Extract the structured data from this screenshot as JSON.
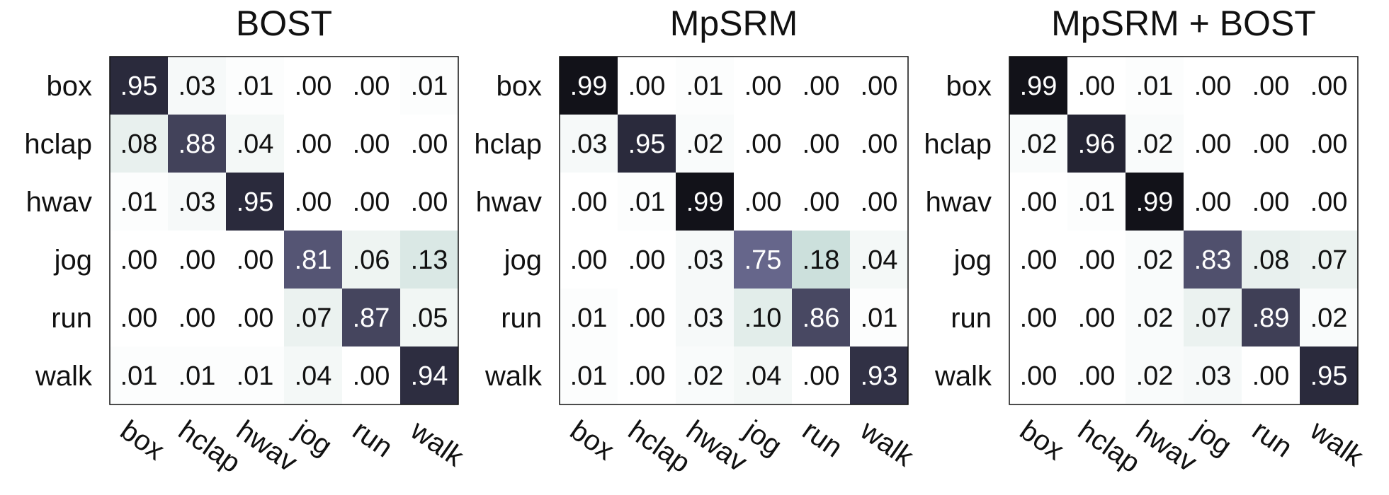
{
  "chart_data": [
    {
      "type": "heatmap",
      "title": "BOST",
      "rows": [
        "box",
        "hclap",
        "hwav",
        "jog",
        "run",
        "walk"
      ],
      "cols": [
        "box",
        "hclap",
        "hwav",
        "jog",
        "run",
        "walk"
      ],
      "labels": [
        [
          ".95",
          ".03",
          ".01",
          ".00",
          ".00",
          ".01"
        ],
        [
          ".08",
          ".88",
          ".04",
          ".00",
          ".00",
          ".00"
        ],
        [
          ".01",
          ".03",
          ".95",
          ".00",
          ".00",
          ".00"
        ],
        [
          ".00",
          ".00",
          ".00",
          ".81",
          ".06",
          ".13"
        ],
        [
          ".00",
          ".00",
          ".00",
          ".07",
          ".87",
          ".05"
        ],
        [
          ".01",
          ".01",
          ".01",
          ".04",
          ".00",
          ".94"
        ]
      ],
      "values": [
        [
          0.95,
          0.03,
          0.01,
          0.0,
          0.0,
          0.01
        ],
        [
          0.08,
          0.88,
          0.04,
          0.0,
          0.0,
          0.0
        ],
        [
          0.01,
          0.03,
          0.95,
          0.0,
          0.0,
          0.0
        ],
        [
          0.0,
          0.0,
          0.0,
          0.81,
          0.06,
          0.13
        ],
        [
          0.0,
          0.0,
          0.0,
          0.07,
          0.87,
          0.05
        ],
        [
          0.01,
          0.01,
          0.01,
          0.04,
          0.0,
          0.94
        ]
      ]
    },
    {
      "type": "heatmap",
      "title": "MpSRM",
      "rows": [
        "box",
        "hclap",
        "hwav",
        "jog",
        "run",
        "walk"
      ],
      "cols": [
        "box",
        "hclap",
        "hwav",
        "jog",
        "run",
        "walk"
      ],
      "labels": [
        [
          ".99",
          ".00",
          ".01",
          ".00",
          ".00",
          ".00"
        ],
        [
          ".03",
          ".95",
          ".02",
          ".00",
          ".00",
          ".00"
        ],
        [
          ".00",
          ".01",
          ".99",
          ".00",
          ".00",
          ".00"
        ],
        [
          ".00",
          ".00",
          ".03",
          ".75",
          ".18",
          ".04"
        ],
        [
          ".01",
          ".00",
          ".03",
          ".10",
          ".86",
          ".01"
        ],
        [
          ".01",
          ".00",
          ".02",
          ".04",
          ".00",
          ".93"
        ]
      ],
      "values": [
        [
          0.99,
          0.0,
          0.01,
          0.0,
          0.0,
          0.0
        ],
        [
          0.03,
          0.95,
          0.02,
          0.0,
          0.0,
          0.0
        ],
        [
          0.0,
          0.01,
          0.99,
          0.0,
          0.0,
          0.0
        ],
        [
          0.0,
          0.0,
          0.03,
          0.75,
          0.18,
          0.04
        ],
        [
          0.01,
          0.0,
          0.03,
          0.1,
          0.86,
          0.01
        ],
        [
          0.01,
          0.0,
          0.02,
          0.04,
          0.0,
          0.93
        ]
      ]
    },
    {
      "type": "heatmap",
      "title": "MpSRM + BOST",
      "rows": [
        "box",
        "hclap",
        "hwav",
        "jog",
        "run",
        "walk"
      ],
      "cols": [
        "box",
        "hclap",
        "hwav",
        "jog",
        "run",
        "walk"
      ],
      "labels": [
        [
          ".99",
          ".00",
          ".01",
          ".00",
          ".00",
          ".00"
        ],
        [
          ".02",
          ".96",
          ".02",
          ".00",
          ".00",
          ".00"
        ],
        [
          ".00",
          ".01",
          ".99",
          ".00",
          ".00",
          ".00"
        ],
        [
          ".00",
          ".00",
          ".02",
          ".83",
          ".08",
          ".07"
        ],
        [
          ".00",
          ".00",
          ".02",
          ".07",
          ".89",
          ".02"
        ],
        [
          ".00",
          ".00",
          ".02",
          ".03",
          ".00",
          ".95"
        ]
      ],
      "values": [
        [
          0.99,
          0.0,
          0.01,
          0.0,
          0.0,
          0.0
        ],
        [
          0.02,
          0.96,
          0.02,
          0.0,
          0.0,
          0.0
        ],
        [
          0.0,
          0.01,
          0.99,
          0.0,
          0.0,
          0.0
        ],
        [
          0.0,
          0.0,
          0.02,
          0.83,
          0.08,
          0.07
        ],
        [
          0.0,
          0.0,
          0.02,
          0.07,
          0.89,
          0.02
        ],
        [
          0.0,
          0.0,
          0.02,
          0.03,
          0.0,
          0.95
        ]
      ]
    }
  ]
}
